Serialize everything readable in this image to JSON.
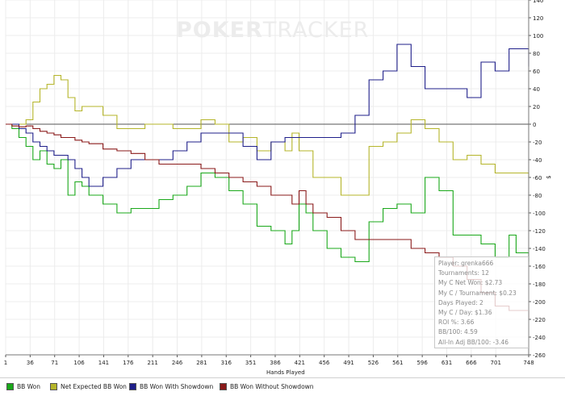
{
  "watermark": {
    "bold": "POKER",
    "light": "TRACKER"
  },
  "chart_data": {
    "type": "line",
    "xlabel": "Hands Played",
    "ylabel": "$",
    "xlim": [
      1,
      748
    ],
    "ylim": [
      -260,
      140
    ],
    "x_ticks": [
      1,
      36,
      71,
      106,
      141,
      176,
      211,
      246,
      281,
      316,
      351,
      386,
      421,
      456,
      491,
      526,
      561,
      596,
      631,
      666,
      701,
      748
    ],
    "y_ticks": [
      140,
      120,
      100,
      80,
      60,
      40,
      20,
      0,
      -20,
      -40,
      -60,
      -80,
      -100,
      -120,
      -140,
      -160,
      -180,
      -200,
      -220,
      -240,
      -260
    ],
    "grid": true,
    "series": [
      {
        "name": "BB Won",
        "color": "#1aa81a",
        "x": [
          1,
          10,
          20,
          30,
          40,
          50,
          60,
          70,
          80,
          90,
          100,
          110,
          120,
          140,
          160,
          180,
          200,
          220,
          240,
          260,
          280,
          300,
          320,
          340,
          360,
          380,
          400,
          410,
          420,
          430,
          440,
          460,
          480,
          500,
          520,
          540,
          560,
          580,
          600,
          620,
          640,
          660,
          680,
          700,
          710,
          720,
          730,
          748
        ],
        "y": [
          0,
          -5,
          -15,
          -25,
          -40,
          -30,
          -45,
          -50,
          -40,
          -80,
          -65,
          -70,
          -80,
          -90,
          -100,
          -95,
          -95,
          -85,
          -80,
          -70,
          -55,
          -60,
          -75,
          -90,
          -115,
          -120,
          -135,
          -120,
          -90,
          -100,
          -120,
          -140,
          -150,
          -155,
          -110,
          -95,
          -90,
          -100,
          -60,
          -75,
          -125,
          -125,
          -135,
          -150,
          -150,
          -125,
          -145,
          -155
        ]
      },
      {
        "name": "Net Expected BB Won",
        "color": "#b5b52a",
        "x": [
          1,
          10,
          20,
          30,
          40,
          50,
          60,
          70,
          80,
          90,
          100,
          110,
          120,
          140,
          160,
          180,
          200,
          220,
          240,
          260,
          280,
          300,
          320,
          340,
          360,
          380,
          400,
          410,
          420,
          440,
          460,
          480,
          500,
          520,
          540,
          560,
          580,
          600,
          620,
          640,
          660,
          680,
          700,
          720,
          730,
          748
        ],
        "y": [
          0,
          0,
          0,
          5,
          25,
          40,
          45,
          55,
          50,
          30,
          15,
          20,
          20,
          10,
          -5,
          -5,
          0,
          0,
          -5,
          -5,
          5,
          0,
          -20,
          -15,
          -30,
          -20,
          -30,
          -10,
          -30,
          -60,
          -60,
          -80,
          -80,
          -25,
          -20,
          -10,
          5,
          -5,
          -20,
          -40,
          -35,
          -45,
          -55,
          -55,
          -55,
          -60
        ]
      },
      {
        "name": "BB Won With Showdown",
        "color": "#1f1f8a",
        "x": [
          1,
          10,
          20,
          30,
          40,
          50,
          60,
          70,
          80,
          90,
          100,
          110,
          120,
          140,
          160,
          180,
          200,
          220,
          240,
          260,
          280,
          300,
          320,
          340,
          360,
          380,
          400,
          420,
          440,
          460,
          480,
          500,
          520,
          540,
          560,
          580,
          600,
          620,
          640,
          660,
          680,
          700,
          720,
          730,
          748
        ],
        "y": [
          0,
          0,
          -5,
          -10,
          -20,
          -25,
          -30,
          -35,
          -35,
          -40,
          -50,
          -60,
          -70,
          -60,
          -50,
          -40,
          -40,
          -40,
          -30,
          -20,
          -10,
          -10,
          -10,
          -25,
          -40,
          -20,
          -15,
          -15,
          -15,
          -15,
          -10,
          10,
          50,
          60,
          90,
          65,
          40,
          40,
          40,
          30,
          70,
          60,
          85,
          85,
          65
        ]
      },
      {
        "name": "BB Won Without Showdown",
        "color": "#8a1a1a",
        "x": [
          1,
          10,
          20,
          30,
          40,
          50,
          60,
          70,
          80,
          90,
          100,
          110,
          120,
          140,
          160,
          180,
          200,
          220,
          240,
          260,
          280,
          300,
          320,
          340,
          360,
          380,
          400,
          410,
          420,
          430,
          440,
          460,
          480,
          500,
          520,
          540,
          560,
          580,
          600,
          620,
          640,
          660,
          680,
          700,
          720,
          748
        ],
        "y": [
          0,
          -2,
          -3,
          -2,
          -5,
          -8,
          -10,
          -12,
          -15,
          -15,
          -18,
          -20,
          -22,
          -28,
          -30,
          -33,
          -40,
          -45,
          -45,
          -45,
          -50,
          -55,
          -60,
          -65,
          -70,
          -80,
          -80,
          -90,
          -75,
          -90,
          -100,
          -105,
          -120,
          -130,
          -130,
          -130,
          -130,
          -140,
          -145,
          -150,
          -160,
          -175,
          -190,
          -205,
          -210,
          -220
        ]
      }
    ],
    "legend_position": "bottom"
  },
  "tooltip": {
    "lines": [
      "Player: grenka666",
      "Tournaments: 12",
      "My C Net Won: $2.73",
      "My C / Tournament: $0.23",
      "Days Played: 2",
      "My C / Day: $1.36",
      "ROI %: 3.66",
      "BB/100: 4.59",
      "All-In Adj BB/100: -3.46"
    ]
  },
  "legend": [
    {
      "label": "BB Won",
      "color": "#1aa81a"
    },
    {
      "label": "Net Expected BB Won",
      "color": "#b5b52a"
    },
    {
      "label": "BB Won With Showdown",
      "color": "#1f1f8a"
    },
    {
      "label": "BB Won Without Showdown",
      "color": "#8a1a1a"
    }
  ]
}
